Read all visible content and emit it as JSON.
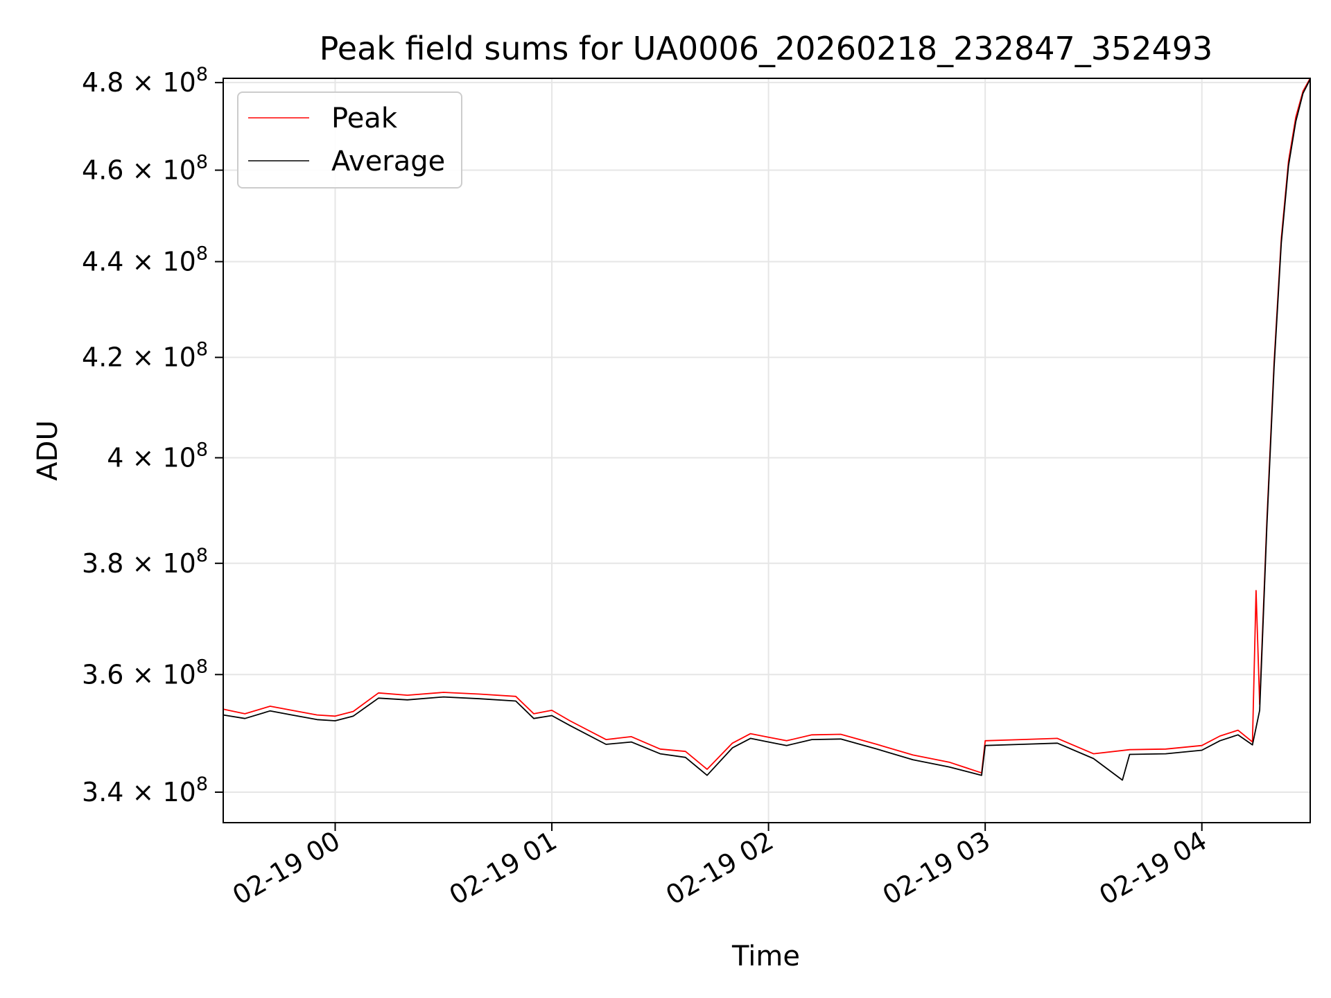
{
  "chart_data": {
    "type": "line",
    "title": "Peak field sums for UA0006_20260218_232847_352493",
    "xlabel": "Time",
    "ylabel": "ADU",
    "yscale": "log",
    "xlim": [
      "2026-02-18 23:29",
      "2026-02-19 04:30"
    ],
    "ylim": [
      335000000,
      481000000
    ],
    "grid": true,
    "legend_position": "upper-left",
    "x_ticks": [
      {
        "t": "2026-02-19 00:00",
        "label": "02-19 00"
      },
      {
        "t": "2026-02-19 01:00",
        "label": "02-19 01"
      },
      {
        "t": "2026-02-19 02:00",
        "label": "02-19 02"
      },
      {
        "t": "2026-02-19 03:00",
        "label": "02-19 03"
      },
      {
        "t": "2026-02-19 04:00",
        "label": "02-19 04"
      }
    ],
    "y_ticks": [
      {
        "v": 340000000,
        "mant": "3.4",
        "exp": "8"
      },
      {
        "v": 360000000,
        "mant": "3.6",
        "exp": "8"
      },
      {
        "v": 380000000,
        "mant": "3.8",
        "exp": "8"
      },
      {
        "v": 400000000,
        "mant": "4",
        "exp": "8"
      },
      {
        "v": 420000000,
        "mant": "4.2",
        "exp": "8"
      },
      {
        "v": 440000000,
        "mant": "4.4",
        "exp": "8"
      },
      {
        "v": 460000000,
        "mant": "4.6",
        "exp": "8"
      },
      {
        "v": 480000000,
        "mant": "4.8",
        "exp": "8"
      }
    ],
    "series": [
      {
        "name": "Peak",
        "color": "#ff0000",
        "points": [
          [
            "2026-02-18 23:29",
            354000000
          ],
          [
            "2026-02-18 23:35",
            353200000
          ],
          [
            "2026-02-18 23:42",
            354500000
          ],
          [
            "2026-02-18 23:48",
            353800000
          ],
          [
            "2026-02-18 23:55",
            353000000
          ],
          [
            "2026-02-19 00:00",
            352800000
          ],
          [
            "2026-02-19 00:05",
            353600000
          ],
          [
            "2026-02-19 00:12",
            356800000
          ],
          [
            "2026-02-19 00:20",
            356400000
          ],
          [
            "2026-02-19 00:30",
            356900000
          ],
          [
            "2026-02-19 00:40",
            356600000
          ],
          [
            "2026-02-19 00:50",
            356200000
          ],
          [
            "2026-02-19 00:55",
            353200000
          ],
          [
            "2026-02-19 01:00",
            353800000
          ],
          [
            "2026-02-19 01:05",
            352000000
          ],
          [
            "2026-02-19 01:15",
            348800000
          ],
          [
            "2026-02-19 01:22",
            349300000
          ],
          [
            "2026-02-19 01:30",
            347200000
          ],
          [
            "2026-02-19 01:37",
            346800000
          ],
          [
            "2026-02-19 01:43",
            343800000
          ],
          [
            "2026-02-19 01:50",
            348200000
          ],
          [
            "2026-02-19 01:55",
            349800000
          ],
          [
            "2026-02-19 02:00",
            349200000
          ],
          [
            "2026-02-19 02:05",
            348600000
          ],
          [
            "2026-02-19 02:12",
            349600000
          ],
          [
            "2026-02-19 02:20",
            349700000
          ],
          [
            "2026-02-19 02:30",
            348000000
          ],
          [
            "2026-02-19 02:40",
            346200000
          ],
          [
            "2026-02-19 02:50",
            345000000
          ],
          [
            "2026-02-19 02:59",
            343200000
          ],
          [
            "2026-02-19 03:00",
            348600000
          ],
          [
            "2026-02-19 03:10",
            348800000
          ],
          [
            "2026-02-19 03:20",
            349000000
          ],
          [
            "2026-02-19 03:30",
            346400000
          ],
          [
            "2026-02-19 03:40",
            347100000
          ],
          [
            "2026-02-19 03:50",
            347200000
          ],
          [
            "2026-02-19 04:00",
            347800000
          ],
          [
            "2026-02-19 04:05",
            349400000
          ],
          [
            "2026-02-19 04:10",
            350400000
          ],
          [
            "2026-02-19 04:14",
            348400000
          ],
          [
            "2026-02-19 04:15",
            375000000
          ],
          [
            "2026-02-19 04:16",
            354800000
          ],
          [
            "2026-02-19 04:18",
            388000000
          ],
          [
            "2026-02-19 04:20",
            419000000
          ],
          [
            "2026-02-19 04:22",
            445000000
          ],
          [
            "2026-02-19 04:24",
            462000000
          ],
          [
            "2026-02-19 04:26",
            472000000
          ],
          [
            "2026-02-19 04:28",
            478000000
          ],
          [
            "2026-02-19 04:30",
            481000000
          ]
        ]
      },
      {
        "name": "Average",
        "color": "#000000",
        "points": [
          [
            "2026-02-18 23:29",
            353000000
          ],
          [
            "2026-02-18 23:35",
            352400000
          ],
          [
            "2026-02-18 23:42",
            353700000
          ],
          [
            "2026-02-18 23:48",
            353000000
          ],
          [
            "2026-02-18 23:55",
            352200000
          ],
          [
            "2026-02-19 00:00",
            352000000
          ],
          [
            "2026-02-19 00:05",
            352800000
          ],
          [
            "2026-02-19 00:12",
            355900000
          ],
          [
            "2026-02-19 00:20",
            355600000
          ],
          [
            "2026-02-19 00:30",
            356100000
          ],
          [
            "2026-02-19 00:40",
            355800000
          ],
          [
            "2026-02-19 00:50",
            355400000
          ],
          [
            "2026-02-19 00:55",
            352400000
          ],
          [
            "2026-02-19 01:00",
            352900000
          ],
          [
            "2026-02-19 01:05",
            351200000
          ],
          [
            "2026-02-19 01:15",
            348000000
          ],
          [
            "2026-02-19 01:22",
            348400000
          ],
          [
            "2026-02-19 01:30",
            346400000
          ],
          [
            "2026-02-19 01:37",
            345800000
          ],
          [
            "2026-02-19 01:43",
            342800000
          ],
          [
            "2026-02-19 01:50",
            347400000
          ],
          [
            "2026-02-19 01:55",
            349000000
          ],
          [
            "2026-02-19 02:00",
            348400000
          ],
          [
            "2026-02-19 02:05",
            347800000
          ],
          [
            "2026-02-19 02:12",
            348800000
          ],
          [
            "2026-02-19 02:20",
            348900000
          ],
          [
            "2026-02-19 02:30",
            347200000
          ],
          [
            "2026-02-19 02:40",
            345400000
          ],
          [
            "2026-02-19 02:50",
            344200000
          ],
          [
            "2026-02-19 02:59",
            342800000
          ],
          [
            "2026-02-19 03:00",
            347800000
          ],
          [
            "2026-02-19 03:10",
            348000000
          ],
          [
            "2026-02-19 03:20",
            348200000
          ],
          [
            "2026-02-19 03:30",
            345600000
          ],
          [
            "2026-02-19 03:38",
            342000000
          ],
          [
            "2026-02-19 03:40",
            346300000
          ],
          [
            "2026-02-19 03:50",
            346400000
          ],
          [
            "2026-02-19 04:00",
            347000000
          ],
          [
            "2026-02-19 04:05",
            348600000
          ],
          [
            "2026-02-19 04:10",
            349600000
          ],
          [
            "2026-02-19 04:14",
            347900000
          ],
          [
            "2026-02-19 04:16",
            353800000
          ],
          [
            "2026-02-19 04:18",
            387000000
          ],
          [
            "2026-02-19 04:20",
            418000000
          ],
          [
            "2026-02-19 04:22",
            444000000
          ],
          [
            "2026-02-19 04:24",
            461000000
          ],
          [
            "2026-02-19 04:26",
            471000000
          ],
          [
            "2026-02-19 04:28",
            477500000
          ],
          [
            "2026-02-19 04:30",
            480800000
          ]
        ]
      }
    ]
  }
}
